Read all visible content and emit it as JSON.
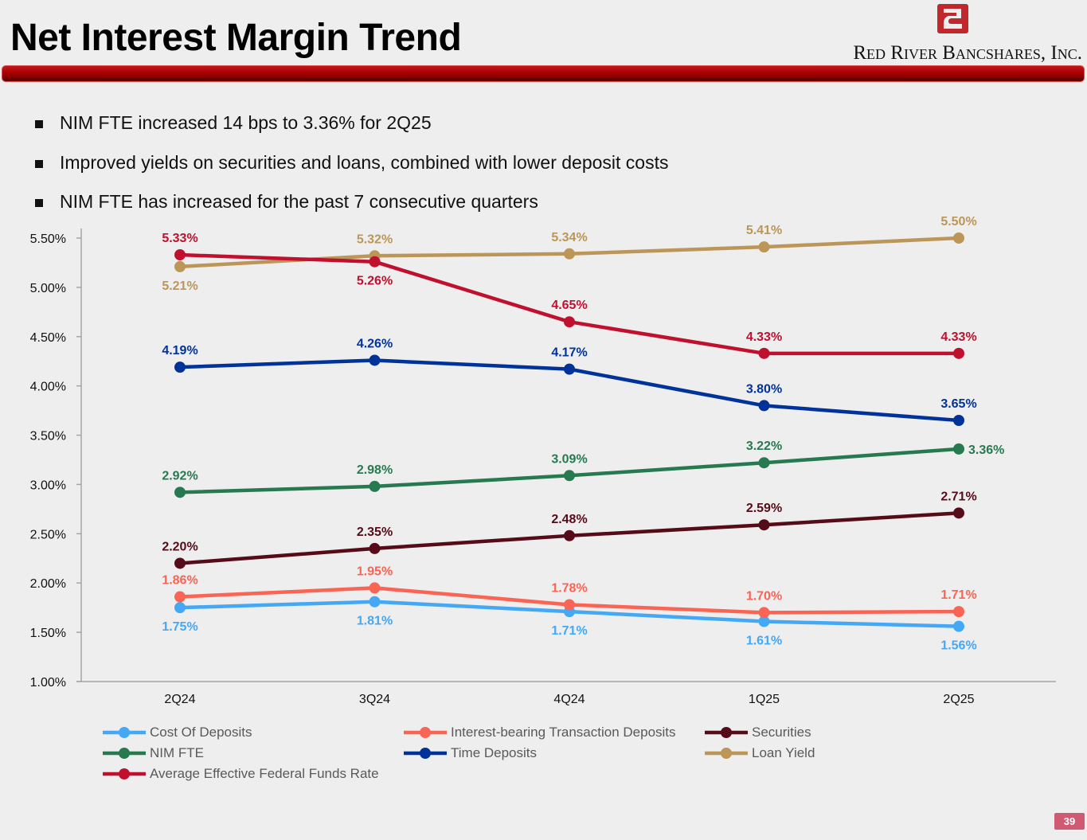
{
  "header": {
    "title": "Net Interest Margin Trend",
    "company": "Red River Bancshares, Inc.",
    "brand_color": "#c0282d"
  },
  "bullets": [
    "NIM FTE increased 14 bps to 3.36% for 2Q25",
    "Improved yields on securities and loans, combined with lower deposit costs",
    "NIM FTE has increased for the past 7 consecutive quarters"
  ],
  "page_number": "39",
  "chart_data": {
    "type": "line",
    "title": "",
    "xlabel": "",
    "ylabel": "",
    "categories": [
      "2Q24",
      "3Q24",
      "4Q24",
      "1Q25",
      "2Q25"
    ],
    "ylim": [
      1.0,
      5.5
    ],
    "yticks": [
      "1.00%",
      "1.50%",
      "2.00%",
      "2.50%",
      "3.00%",
      "3.50%",
      "4.00%",
      "4.50%",
      "5.00%",
      "5.50%"
    ],
    "ytick_values": [
      1.0,
      1.5,
      2.0,
      2.5,
      3.0,
      3.5,
      4.0,
      4.5,
      5.0,
      5.5
    ],
    "grid": false,
    "legend_position": "bottom",
    "series": [
      {
        "name": "Cost Of Deposits",
        "color": "#45a8f5",
        "values": [
          1.75,
          1.81,
          1.71,
          1.61,
          1.56
        ],
        "labels": [
          "1.75%",
          "1.81%",
          "1.71%",
          "1.61%",
          "1.56%"
        ],
        "label_pos": [
          "below",
          "below",
          "below",
          "below",
          "below"
        ]
      },
      {
        "name": "Interest-bearing Transaction Deposits",
        "color": "#fa6454",
        "values": [
          1.86,
          1.95,
          1.78,
          1.7,
          1.71
        ],
        "labels": [
          "1.86%",
          "1.95%",
          "1.78%",
          "1.70%",
          "1.71%"
        ],
        "label_pos": [
          "above",
          "above",
          "above",
          "above",
          "above"
        ]
      },
      {
        "name": "Securities",
        "color": "#560c18",
        "values": [
          2.2,
          2.35,
          2.48,
          2.59,
          2.71
        ],
        "labels": [
          "2.20%",
          "2.35%",
          "2.48%",
          "2.59%",
          "2.71%"
        ],
        "label_pos": [
          "above",
          "above",
          "above",
          "above",
          "above"
        ]
      },
      {
        "name": "NIM FTE",
        "color": "#277a50",
        "values": [
          2.92,
          2.98,
          3.09,
          3.22,
          3.36
        ],
        "labels": [
          "2.92%",
          "2.98%",
          "3.09%",
          "3.22%",
          "3.36%"
        ],
        "label_pos": [
          "above",
          "above",
          "above",
          "above",
          "right"
        ]
      },
      {
        "name": "Time Deposits",
        "color": "#003399",
        "values": [
          4.19,
          4.26,
          4.17,
          3.8,
          3.65
        ],
        "labels": [
          "4.19%",
          "4.26%",
          "4.17%",
          "3.80%",
          "3.65%"
        ],
        "label_pos": [
          "above",
          "above",
          "above",
          "above",
          "above"
        ]
      },
      {
        "name": "Loan Yield",
        "color": "#bc9658",
        "values": [
          5.21,
          5.32,
          5.34,
          5.41,
          5.5
        ],
        "labels": [
          "5.21%",
          "5.32%",
          "5.34%",
          "5.41%",
          "5.50%"
        ],
        "label_pos": [
          "below",
          "above",
          "above",
          "above",
          "above"
        ]
      },
      {
        "name": "Average Effective Federal Funds Rate",
        "color": "#c0102e",
        "values": [
          5.33,
          5.26,
          4.65,
          4.33,
          4.33
        ],
        "labels": [
          "5.33%",
          "5.26%",
          "4.65%",
          "4.33%",
          "4.33%"
        ],
        "label_pos": [
          "above",
          "below",
          "above",
          "above",
          "above"
        ]
      }
    ],
    "legend_order": [
      [
        "Cost Of Deposits",
        "Interest-bearing Transaction Deposits",
        "Securities"
      ],
      [
        "NIM FTE",
        "Time Deposits",
        "Loan Yield"
      ],
      [
        "Average Effective Federal Funds Rate"
      ]
    ]
  }
}
